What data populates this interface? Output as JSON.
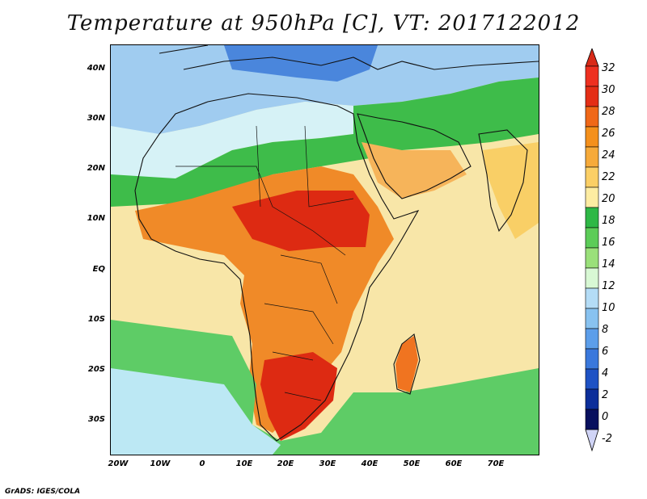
{
  "title": "Temperature at 950hPa [C], VT: 2017122012",
  "credit": "GrADS: IGES/COLA",
  "map": {
    "lon_range": [
      -22,
      80
    ],
    "lat_range": [
      -37,
      45
    ],
    "y_ticks": [
      {
        "lat": 40,
        "label": "40N"
      },
      {
        "lat": 30,
        "label": "30N"
      },
      {
        "lat": 20,
        "label": "20N"
      },
      {
        "lat": 10,
        "label": "10N"
      },
      {
        "lat": 0,
        "label": "EQ"
      },
      {
        "lat": -10,
        "label": "10S"
      },
      {
        "lat": -20,
        "label": "20S"
      },
      {
        "lat": -30,
        "label": "30S"
      }
    ],
    "x_ticks": [
      {
        "lon": -20,
        "label": "20W"
      },
      {
        "lon": -10,
        "label": "10W"
      },
      {
        "lon": 0,
        "label": "0"
      },
      {
        "lon": 10,
        "label": "10E"
      },
      {
        "lon": 20,
        "label": "20E"
      },
      {
        "lon": 30,
        "label": "30E"
      },
      {
        "lon": 40,
        "label": "40E"
      },
      {
        "lon": 50,
        "label": "50E"
      },
      {
        "lon": 60,
        "label": "60E"
      },
      {
        "lon": 70,
        "label": "70E"
      }
    ]
  },
  "colorbar": {
    "labels": [
      "32",
      "30",
      "28",
      "26",
      "24",
      "22",
      "20",
      "18",
      "16",
      "14",
      "12",
      "10",
      "8",
      "6",
      "4",
      "2",
      "0",
      "-2"
    ],
    "colors": [
      "#ee3020",
      "#e42e16",
      "#f06818",
      "#f4901c",
      "#f6aa3a",
      "#fbcf66",
      "#fdeca2",
      "#2eb846",
      "#5ccc58",
      "#9ae07a",
      "#d8f8d4",
      "#b4dcf6",
      "#88c2f0",
      "#5c9eea",
      "#3a78dc",
      "#1e52c4",
      "#0c2e9a",
      "#08105e"
    ],
    "top_arrow_color": "#d82a18",
    "bottom_arrow_color": "#d0d4f6"
  },
  "regions": [
    {
      "name": "ocean-background",
      "color": "#f8e6a8"
    },
    {
      "name": "north-cold-zone",
      "color": "#a0ccf0"
    },
    {
      "name": "mediterranean-cold",
      "color": "#4a86dc"
    },
    {
      "name": "sahara-cool-zone",
      "color": "#d6f2f6"
    },
    {
      "name": "green-band-north",
      "color": "#3ebc4a"
    },
    {
      "name": "hot-africa",
      "color": "#f08a28"
    },
    {
      "name": "hottest-core",
      "color": "#dd2a12"
    },
    {
      "name": "southern-ocean-green",
      "color": "#5ecc66"
    },
    {
      "name": "southern-ocean-cool",
      "color": "#bce8f4"
    },
    {
      "name": "south-africa-hot",
      "color": "#dd2a12"
    },
    {
      "name": "madagascar",
      "color": "#f07420"
    },
    {
      "name": "arabia-warm",
      "color": "#f6b45a"
    },
    {
      "name": "india-warm",
      "color": "#f9cf66"
    }
  ]
}
